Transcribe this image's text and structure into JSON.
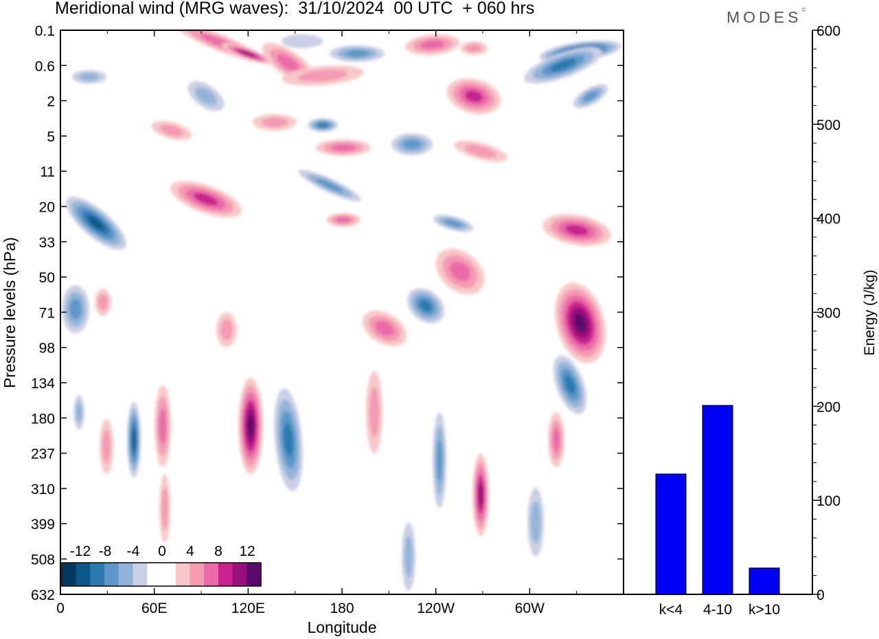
{
  "header": {
    "title": "Meridional wind (MRG waves):  31/10/2024  00 UTC  + 060 hrs",
    "brand": "MODES",
    "brand_mark": "©"
  },
  "colors": {
    "neg": [
      "#053a5e",
      "#0c5a8a",
      "#2a7ab0",
      "#5d98c8",
      "#93b4d8",
      "#c9cfe4"
    ],
    "zero": "#ffffff",
    "pos": [
      "#f8c8c8",
      "#f49ab4",
      "#ea6aa8",
      "#c8248c",
      "#98107a",
      "#5a0a6a"
    ],
    "bar": "#0000f8"
  },
  "chart_data": [
    {
      "type": "heatmap",
      "xlabel": "Longitude",
      "ylabel": "Pressure levels (hPa)",
      "x_ticks": [
        "0",
        "60E",
        "120E",
        "180",
        "120W",
        "60W"
      ],
      "x_range": [
        0,
        360
      ],
      "y_ticks": [
        "0.1",
        "0.6",
        "2",
        "5",
        "11",
        "20",
        "33",
        "50",
        "71",
        "98",
        "134",
        "180",
        "237",
        "310",
        "399",
        "508",
        "632"
      ],
      "colorbar_labels": [
        "-12",
        "-8",
        "-4",
        "0",
        "4",
        "8",
        "12"
      ],
      "levels": [
        -14,
        -12,
        -10,
        -8,
        -6,
        -4,
        -2,
        2,
        4,
        6,
        8,
        10,
        12,
        14
      ]
    },
    {
      "type": "bar",
      "categories": [
        "k<4",
        "4-10",
        "k>10"
      ],
      "values": [
        128,
        201,
        28
      ],
      "ylabel": "Energy (J/kg)",
      "ylim": [
        0,
        600
      ],
      "y_ticks": [
        0,
        100,
        200,
        300,
        400,
        500,
        600
      ]
    }
  ]
}
